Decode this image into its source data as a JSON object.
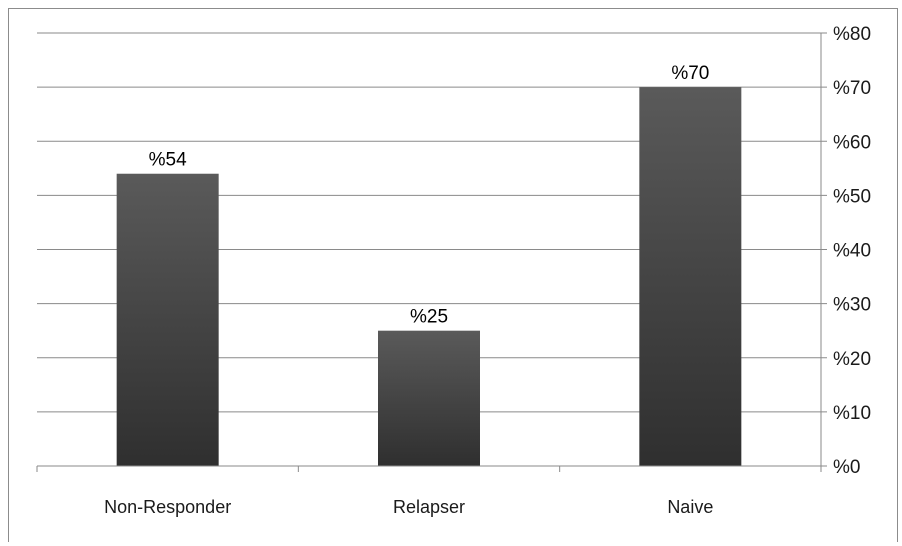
{
  "chart_data": {
    "type": "bar",
    "categories": [
      "Non-Responder",
      "Relapser",
      "Naive"
    ],
    "values": [
      54,
      25,
      70
    ],
    "data_labels": [
      "%54",
      "%25",
      "%70"
    ],
    "title": "",
    "xlabel": "",
    "ylabel": "",
    "ylim": [
      0,
      80
    ],
    "y_ticks": [
      0,
      10,
      20,
      30,
      40,
      50,
      60,
      70,
      80
    ],
    "y_tick_labels": [
      "%0",
      "%10",
      "%20",
      "%30",
      "%40",
      "%50",
      "%60",
      "%70",
      "%80"
    ],
    "y_axis_side": "right",
    "grid": true,
    "legend": "none",
    "colors": {
      "bar_top": "#5a5a5a",
      "bar_bottom": "#2f2f2f",
      "grid": "#8a8a8a"
    }
  }
}
